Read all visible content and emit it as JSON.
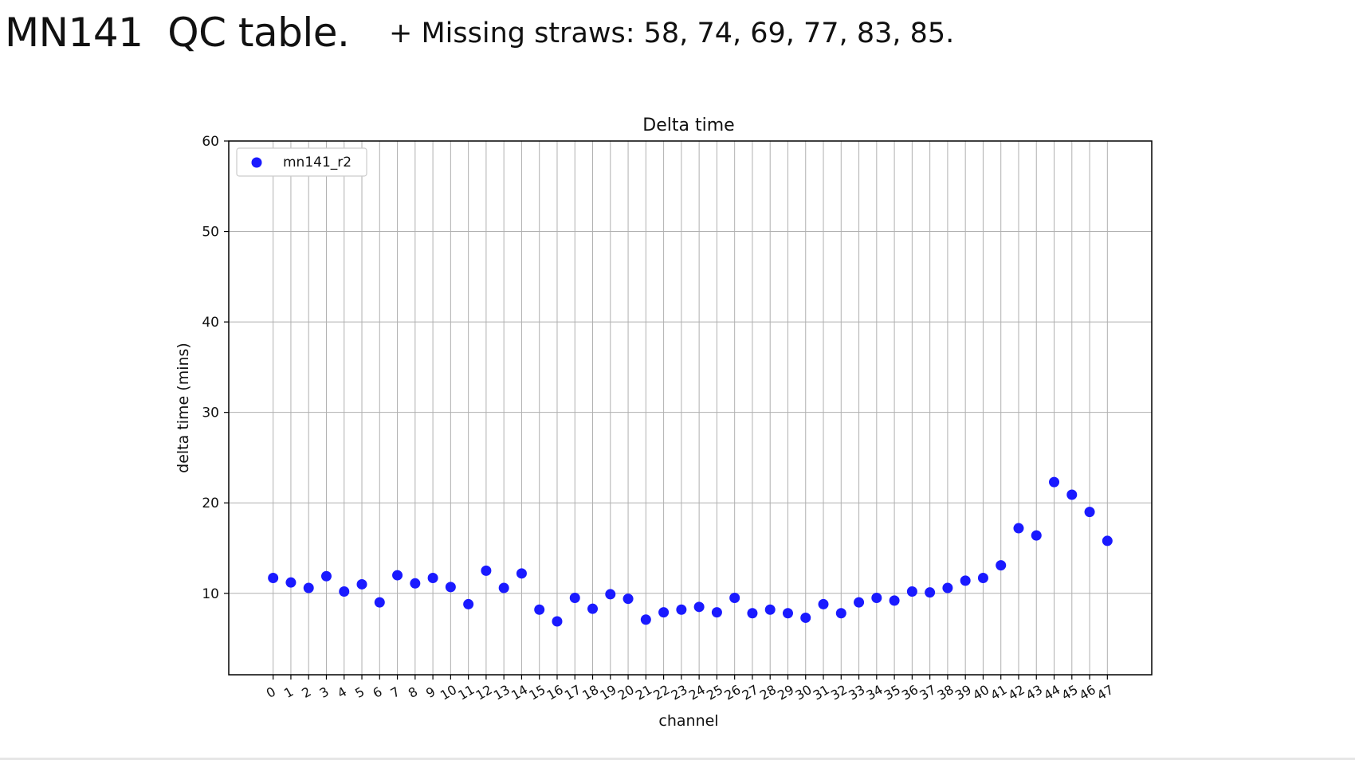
{
  "slide": {
    "title": "MN141  QC table.",
    "note": "+ Missing straws: 58, 74, 69, 77, 83, 85."
  },
  "chart_data": {
    "type": "scatter",
    "title": "Delta time",
    "xlabel": "channel",
    "ylabel": "delta time (mins)",
    "x": [
      0,
      1,
      2,
      3,
      4,
      5,
      6,
      7,
      8,
      9,
      10,
      11,
      12,
      13,
      14,
      15,
      16,
      17,
      18,
      19,
      20,
      21,
      22,
      23,
      24,
      25,
      26,
      27,
      28,
      29,
      30,
      31,
      32,
      33,
      34,
      35,
      36,
      37,
      38,
      39,
      40,
      41,
      42,
      43,
      44,
      45,
      46,
      47
    ],
    "xticklabels": [
      "0",
      "1",
      "2",
      "3",
      "4",
      "5",
      "6",
      "7",
      "8",
      "9",
      "10",
      "11",
      "12",
      "13",
      "14",
      "15",
      "16",
      "17",
      "18",
      "19",
      "20",
      "21",
      "22",
      "23",
      "24",
      "25",
      "26",
      "27",
      "28",
      "29",
      "30",
      "31",
      "32",
      "33",
      "34",
      "35",
      "36",
      "37",
      "38",
      "39",
      "40",
      "41",
      "42",
      "43",
      "44",
      "45",
      "46",
      "47"
    ],
    "yticks": [
      10,
      20,
      30,
      40,
      50,
      60
    ],
    "ylim": [
      1,
      60
    ],
    "xlim": [
      -2.5,
      49.5
    ],
    "grid": true,
    "legend": "upper-left",
    "series": [
      {
        "name": "mn141_r2",
        "color": "#1a1aff",
        "values": [
          11.7,
          11.2,
          10.6,
          11.9,
          10.2,
          11.0,
          9.0,
          12.0,
          11.1,
          11.7,
          10.7,
          8.8,
          12.5,
          10.6,
          12.2,
          8.2,
          6.9,
          9.5,
          8.3,
          9.9,
          9.4,
          7.1,
          7.9,
          8.2,
          8.5,
          7.9,
          9.5,
          7.8,
          8.2,
          7.8,
          7.3,
          8.8,
          7.8,
          9.0,
          9.5,
          9.2,
          10.2,
          10.1,
          10.6,
          11.4,
          11.7,
          13.1,
          17.2,
          16.4,
          22.3,
          20.9,
          19.0,
          15.8
        ]
      }
    ]
  }
}
